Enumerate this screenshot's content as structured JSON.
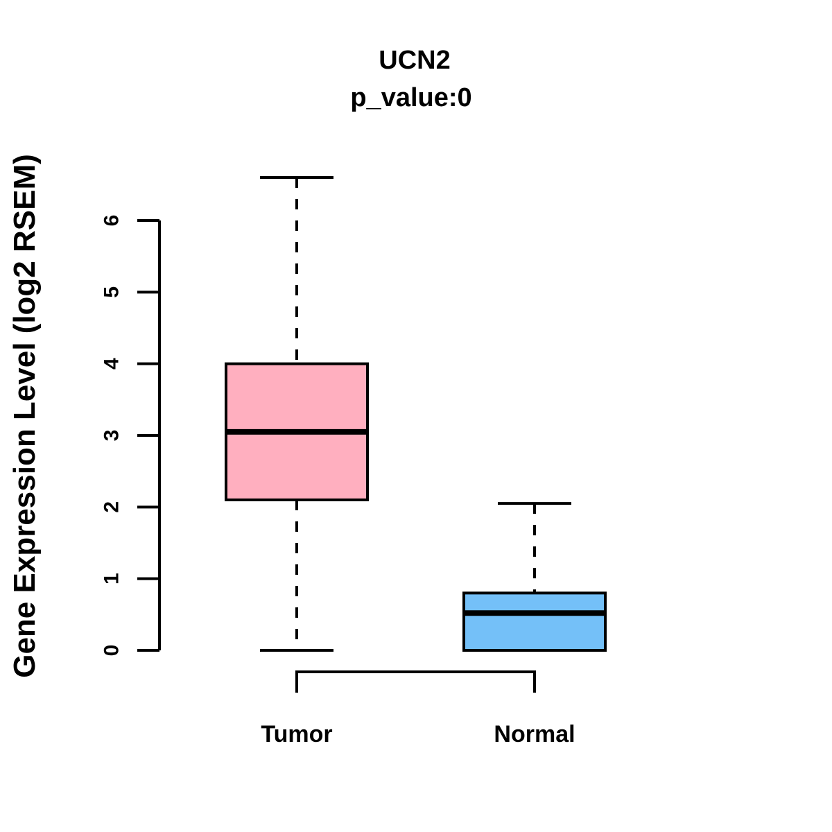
{
  "chart_data": {
    "type": "boxplot",
    "title": "UCN2",
    "subtitle": "p_value:0",
    "ylabel": "Gene Expression Level (log2 RSEM)",
    "xlabel": "",
    "categories": [
      "Tumor",
      "Normal"
    ],
    "series": [
      {
        "name": "Tumor",
        "whisker_low": 0,
        "q1": 2.1,
        "median": 3.05,
        "q3": 4.0,
        "whisker_high": 6.6,
        "fill_color": "#FFAFBF"
      },
      {
        "name": "Normal",
        "whisker_low": 0,
        "q1": 0,
        "median": 0.52,
        "q3": 0.8,
        "whisker_high": 2.05,
        "fill_color": "#74C0F8"
      }
    ],
    "ylim": [
      0,
      6
    ],
    "yticks": [
      "0",
      "1",
      "2",
      "3",
      "4",
      "5",
      "6"
    ],
    "grid": false,
    "legend": "none",
    "line_color": "#000000",
    "background_color": "#FFFFFF"
  }
}
